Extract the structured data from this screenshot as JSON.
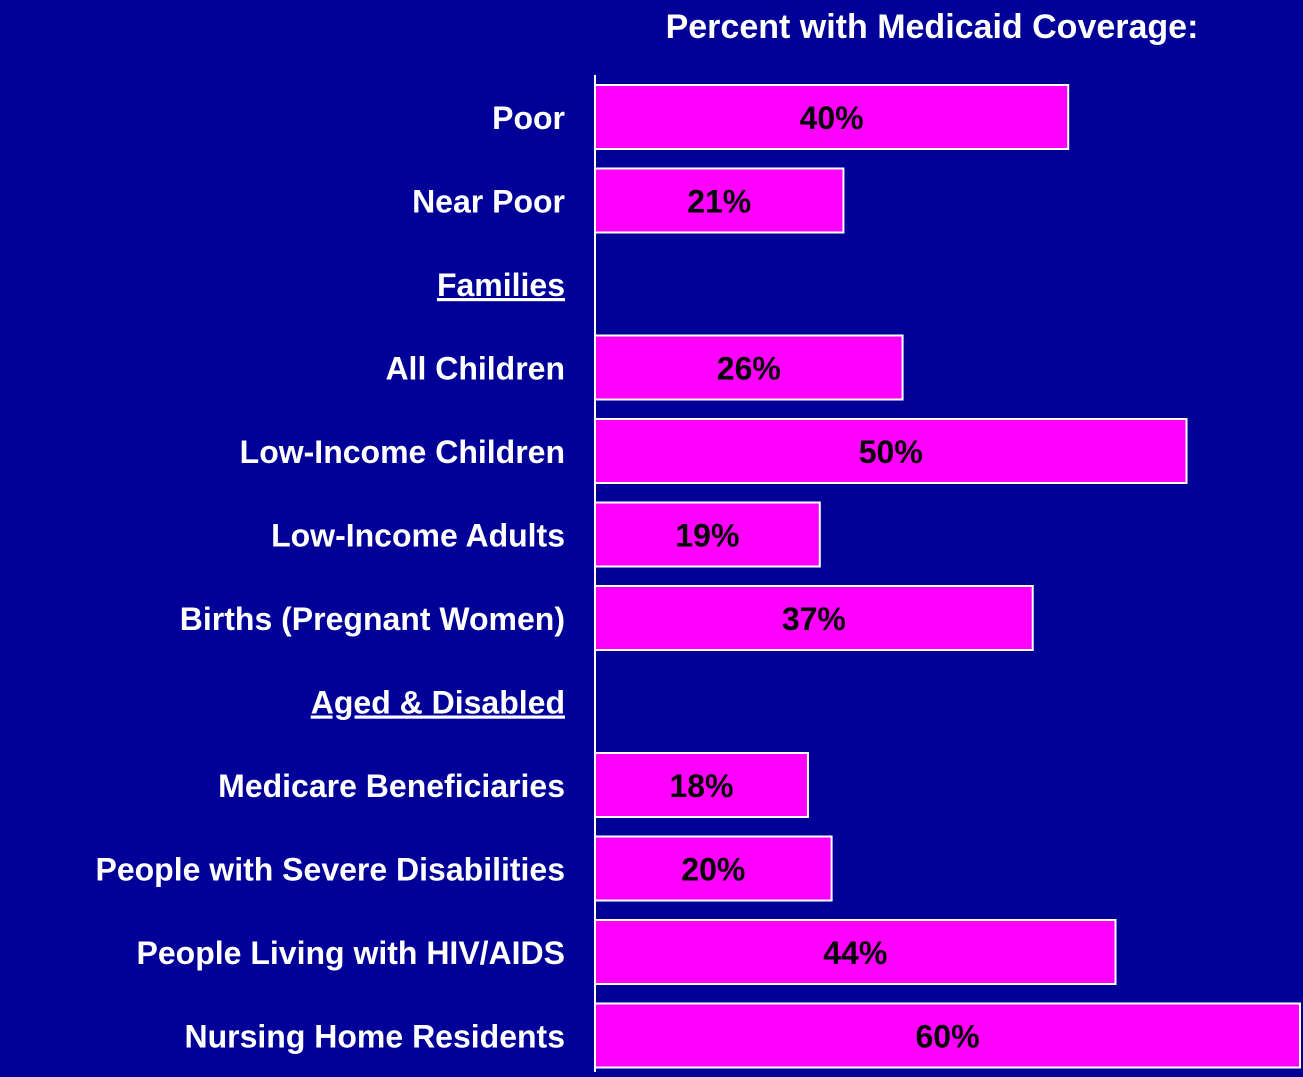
{
  "chart_data": {
    "type": "bar",
    "orientation": "horizontal",
    "title": "Percent with Medicaid Coverage:",
    "xlabel": "",
    "ylabel": "",
    "xlim": [
      0,
      60
    ],
    "grid": false,
    "legend": "none",
    "rows": [
      {
        "kind": "bar",
        "label": "Poor",
        "value": 40,
        "value_label": "40%"
      },
      {
        "kind": "bar",
        "label": "Near Poor",
        "value": 21,
        "value_label": "21%"
      },
      {
        "kind": "header",
        "label": "Families"
      },
      {
        "kind": "bar",
        "label": "All Children",
        "value": 26,
        "value_label": "26%"
      },
      {
        "kind": "bar",
        "label": "Low-Income Children",
        "value": 50,
        "value_label": "50%"
      },
      {
        "kind": "bar",
        "label": "Low-Income Adults",
        "value": 19,
        "value_label": "19%"
      },
      {
        "kind": "bar",
        "label": "Births (Pregnant Women)",
        "value": 37,
        "value_label": "37%"
      },
      {
        "kind": "header",
        "label": "Aged & Disabled"
      },
      {
        "kind": "bar",
        "label": "Medicare Beneficiaries",
        "value": 18,
        "value_label": "18%"
      },
      {
        "kind": "bar",
        "label": "People with Severe Disabilities",
        "value": 20,
        "value_label": "20%"
      },
      {
        "kind": "bar",
        "label": "People Living with HIV/AIDS",
        "value": 44,
        "value_label": "44%"
      },
      {
        "kind": "bar",
        "label": "Nursing Home Residents",
        "value": 60,
        "value_label": "60%"
      }
    ]
  },
  "colors": {
    "background": "#000099",
    "bar_fill": "#FF00FF",
    "bar_stroke": "#FFFFFF",
    "axis_line": "#FFFFFF",
    "label_text": "#FFFFFF",
    "value_text": "#000000"
  }
}
